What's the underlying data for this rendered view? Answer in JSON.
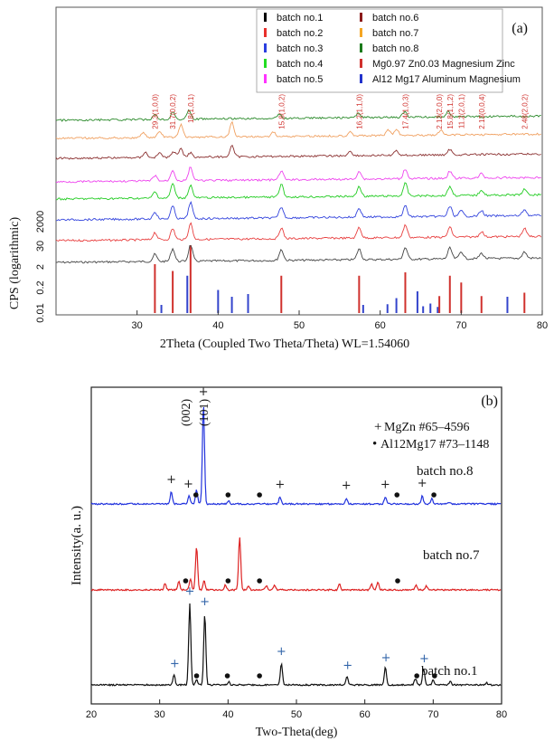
{
  "chart_data": [
    {
      "type": "line",
      "panel_label": "(a)",
      "xlabel": "2Theta (Coupled Two Theta/Theta) WL=1.54060",
      "ylabel": "CPS (logarithmic)",
      "xlim": [
        20,
        80
      ],
      "x_ticks": [
        "30",
        "40",
        "50",
        "60",
        "70",
        "80"
      ],
      "y_ticks": [
        "0.01",
        "0.2",
        "2",
        "30",
        "2000"
      ],
      "legend_placement": "top-right",
      "legend": [
        {
          "label": "batch no.1",
          "color": "#000000"
        },
        {
          "label": "batch no.6",
          "color": "#8b1a1a"
        },
        {
          "label": "batch no.2",
          "color": "#e8302c"
        },
        {
          "label": "batch no.7",
          "color": "#f5a623"
        },
        {
          "label": "batch no.3",
          "color": "#2a3fe0"
        },
        {
          "label": "batch no.8",
          "color": "#1a7a1a"
        },
        {
          "label": "batch no.4",
          "color": "#22dd22"
        },
        {
          "label": "Mg0.97 Zn0.03 Magnesium Zinc",
          "color": "#d0312d"
        },
        {
          "label": "batch no.5",
          "color": "#ff33ff"
        },
        {
          "label": "Al12 Mg17 Aluminum Magnesium",
          "color": "#2233cc"
        }
      ],
      "traces_bottom_to_top": [
        {
          "name": "batch no.1",
          "color": "#444444"
        },
        {
          "name": "batch no.2",
          "color": "#e84040"
        },
        {
          "name": "batch no.3",
          "color": "#3344dd"
        },
        {
          "name": "batch no.4",
          "color": "#22cc22"
        },
        {
          "name": "batch no.5",
          "color": "#ee44ee"
        },
        {
          "name": "batch no.6",
          "color": "#8b3030"
        },
        {
          "name": "batch no.7",
          "color": "#f0a060"
        },
        {
          "name": "batch no.8",
          "color": "#2a8a2a"
        }
      ],
      "mgzn_peaks": [
        {
          "x": 32.2,
          "label": "29.3(1,0,0)",
          "h": 0.72
        },
        {
          "x": 34.4,
          "label": "31.7(0,0,2)",
          "h": 0.62
        },
        {
          "x": 36.6,
          "label": "18(1,0,1)",
          "h": 1.0
        },
        {
          "x": 47.8,
          "label": "15.8(1,0,2)",
          "h": 0.55
        },
        {
          "x": 57.4,
          "label": "16.2(1,1,0)",
          "h": 0.55
        },
        {
          "x": 63.1,
          "label": "17.4(1,0,3)",
          "h": 0.6
        },
        {
          "x": 67.3,
          "label": "2.13(2,0,0)",
          "h": 0.25
        },
        {
          "x": 68.6,
          "label": "15.8(1,1,2)",
          "h": 0.55
        },
        {
          "x": 70.0,
          "label": "11.2(2,0,1)",
          "h": 0.45
        },
        {
          "x": 72.5,
          "label": "2.13(0,0,4)",
          "h": 0.25
        },
        {
          "x": 77.8,
          "label": "2.48(2,0,2)",
          "h": 0.3
        }
      ],
      "al12mg17_peaks": [
        {
          "x": 33.0,
          "h": 0.12
        },
        {
          "x": 36.2,
          "h": 0.55
        },
        {
          "x": 40.0,
          "h": 0.34
        },
        {
          "x": 41.7,
          "h": 0.24
        },
        {
          "x": 43.7,
          "h": 0.28
        },
        {
          "x": 57.9,
          "h": 0.12
        },
        {
          "x": 60.9,
          "h": 0.13
        },
        {
          "x": 62.0,
          "h": 0.22
        },
        {
          "x": 64.6,
          "h": 0.32
        },
        {
          "x": 65.3,
          "h": 0.1
        },
        {
          "x": 66.2,
          "h": 0.14
        },
        {
          "x": 67.1,
          "h": 0.09
        },
        {
          "x": 75.7,
          "h": 0.24
        }
      ]
    },
    {
      "type": "line",
      "panel_label": "(b)",
      "xlabel": "Two-Theta(deg)",
      "ylabel": "Intensity(a. u.)",
      "xlim": [
        20,
        80
      ],
      "x_ticks": [
        "20",
        "30",
        "40",
        "50",
        "60",
        "70",
        "80"
      ],
      "legend_placement": "top-right",
      "legend": [
        {
          "marker": "+",
          "label": "MgZn #65–4596"
        },
        {
          "marker": "•",
          "label": "Al12Mg17 #73–1148"
        }
      ],
      "peak_index_labels": [
        {
          "label": "(002)",
          "x": 34.4
        },
        {
          "label": "(101)",
          "x": 36.6
        }
      ],
      "series": [
        {
          "name": "batch no.8",
          "color": "#2233dd",
          "peaks": [
            [
              31.7,
              0.12
            ],
            [
              34.3,
              0.09
            ],
            [
              35.4,
              0.14
            ],
            [
              36.4,
              1.0
            ],
            [
              40.1,
              0.03
            ],
            [
              47.6,
              0.07
            ],
            [
              57.3,
              0.06
            ],
            [
              63.0,
              0.07
            ],
            [
              68.4,
              0.08
            ],
            [
              69.8,
              0.05
            ],
            [
              72.4,
              0.02
            ]
          ],
          "plus_markers": [
            31.7,
            34.2,
            36.4,
            47.6,
            57.3,
            63.0,
            68.4
          ],
          "dot_markers": [
            35.3,
            40.0,
            44.6,
            64.7,
            70.1
          ]
        },
        {
          "name": "batch no.7",
          "color": "#dd2222",
          "peaks": [
            [
              30.8,
              0.07
            ],
            [
              32.8,
              0.09
            ],
            [
              34.5,
              0.12
            ],
            [
              35.4,
              0.46
            ],
            [
              36.5,
              0.1
            ],
            [
              39.6,
              0.05
            ],
            [
              41.7,
              0.55
            ],
            [
              43.0,
              0.04
            ],
            [
              45.6,
              0.04
            ],
            [
              46.8,
              0.05
            ],
            [
              56.3,
              0.06
            ],
            [
              61.0,
              0.06
            ],
            [
              61.9,
              0.08
            ],
            [
              67.5,
              0.05
            ],
            [
              69.0,
              0.04
            ]
          ],
          "plus_markers": [],
          "dot_markers": [
            33.8,
            40.0,
            44.6,
            64.8
          ]
        },
        {
          "name": "batch no.1",
          "color": "#111111",
          "peaks": [
            [
              32.1,
              0.1
            ],
            [
              34.4,
              0.78
            ],
            [
              35.4,
              0.05
            ],
            [
              36.6,
              0.68
            ],
            [
              40.1,
              0.03
            ],
            [
              47.8,
              0.2
            ],
            [
              57.4,
              0.08
            ],
            [
              63.0,
              0.17
            ],
            [
              67.4,
              0.06
            ],
            [
              68.6,
              0.16
            ],
            [
              70.0,
              0.05
            ],
            [
              72.5,
              0.03
            ],
            [
              77.8,
              0.02
            ]
          ],
          "plus_markers": [
            32.2,
            34.4,
            36.6,
            47.8,
            57.5,
            63.1,
            68.7
          ],
          "dot_markers": [
            35.4,
            39.9,
            44.6,
            67.6,
            70.2
          ]
        }
      ]
    }
  ]
}
